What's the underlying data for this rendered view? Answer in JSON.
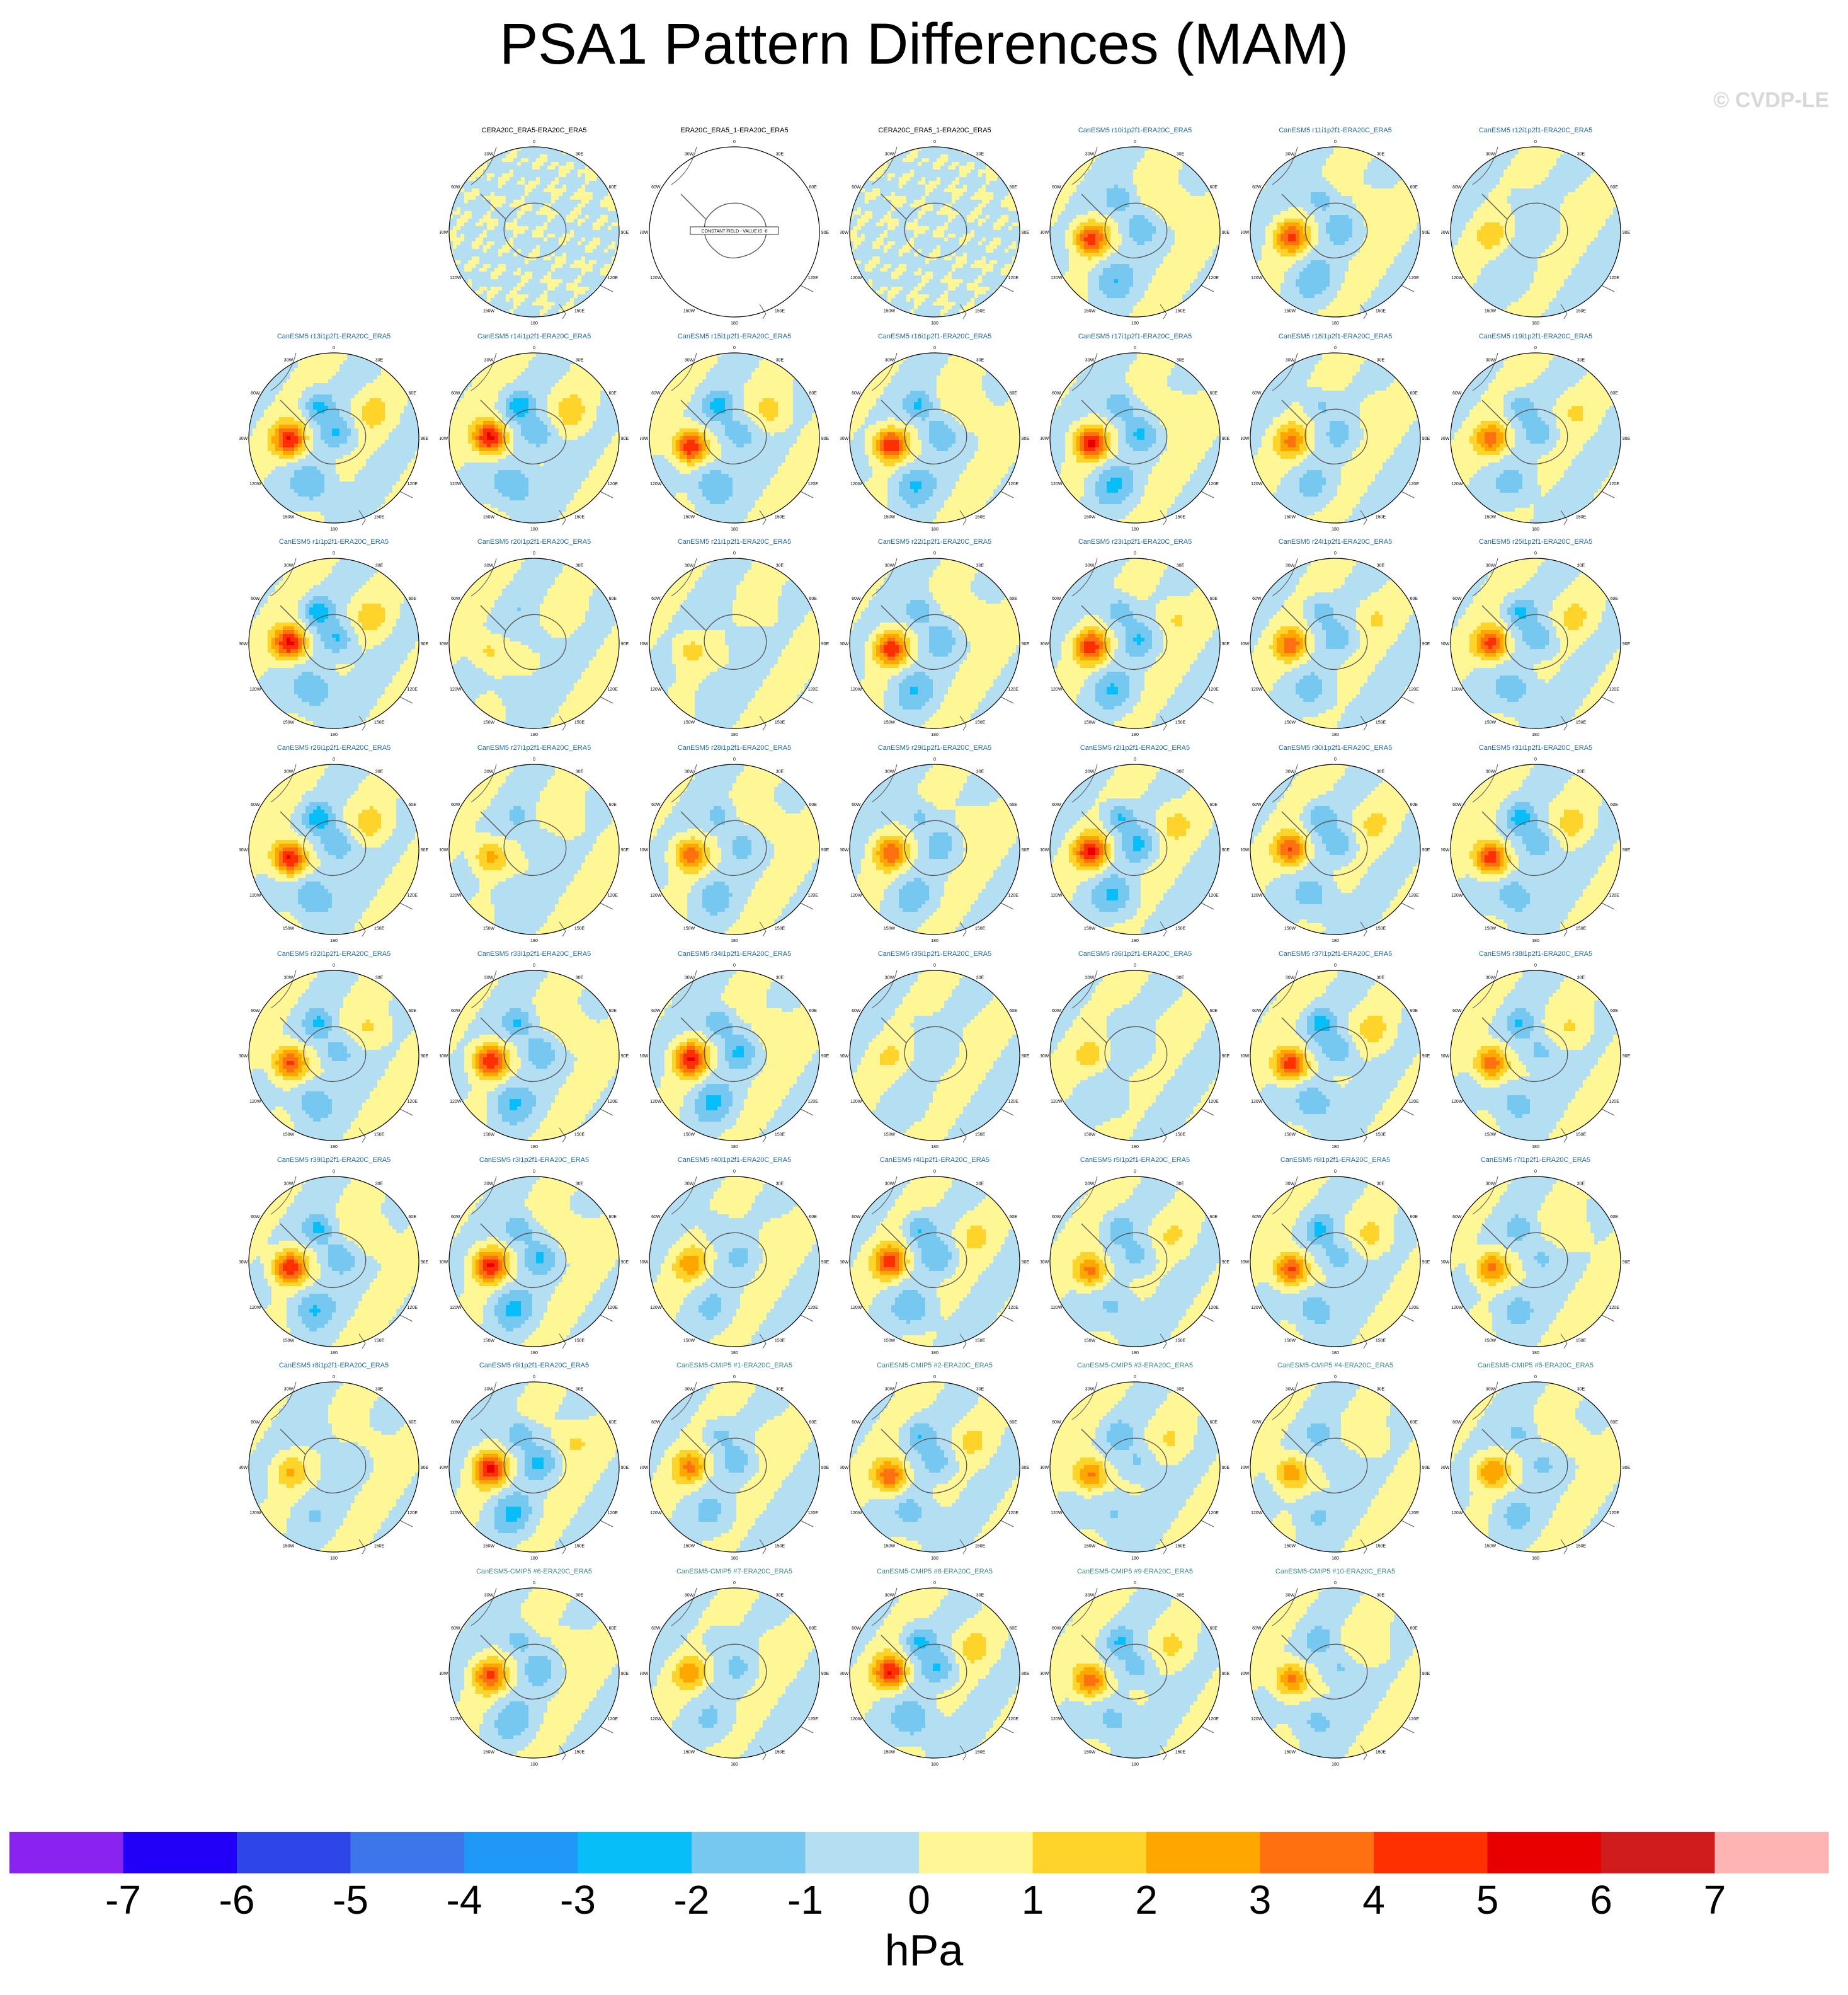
{
  "title": "PSA1 Pattern Differences (MAM)",
  "watermark": "© CVDP-LE",
  "map_tick_labels": [
    "0",
    "30E",
    "60E",
    "90E",
    "120E",
    "150E",
    "180",
    "150W",
    "120W",
    "90W",
    "60W",
    "30W"
  ],
  "constant_field_label": "CONSTANT FIELD - VALUE IS -0",
  "colors": {
    "obs_title": "#000000",
    "lens_title": "#1b6aa0",
    "cmip_title": "#3a8a8a",
    "land": "#555555"
  },
  "chart_data": {
    "type": "heatmap",
    "description_units": "hPa",
    "colorbar": {
      "label": "hPa",
      "ticks": [
        "-7",
        "-6",
        "-5",
        "-4",
        "-3",
        "-2",
        "-1",
        "0",
        "1",
        "2",
        "3",
        "4",
        "5",
        "6",
        "7"
      ],
      "colors": [
        "#8a22f0",
        "#2200f8",
        "#2e46e8",
        "#3c76ea",
        "#2098f8",
        "#08bef8",
        "#76c8f0",
        "#b4def2",
        "#fff696",
        "#ffd42a",
        "#ffa600",
        "#ff7010",
        "#ff3000",
        "#e80000",
        "#d01c1c",
        "#ffb4b4"
      ]
    },
    "panels": [
      {
        "title": "CERA20C_ERA5-ERA20C_ERA5",
        "kind": "obs",
        "pattern": "noisy",
        "amp": 0
      },
      {
        "title": "ERA20C_ERA5_1-ERA20C_ERA5",
        "kind": "obs",
        "pattern": "constant",
        "amp": 0
      },
      {
        "title": "CERA20C_ERA5_1-ERA20C_ERA5",
        "kind": "obs",
        "pattern": "noisy",
        "amp": 0
      },
      {
        "title": "CanESM5 r10i1p2f1-ERA20C_ERA5",
        "kind": "lens",
        "pattern": "psa",
        "amp": 4.5
      },
      {
        "title": "CanESM5 r11i1p2f1-ERA20C_ERA5",
        "kind": "lens",
        "pattern": "psa",
        "amp": 4.0
      },
      {
        "title": "CanESM5 r12i1p2f1-ERA20C_ERA5",
        "kind": "lens",
        "pattern": "psa",
        "amp": 1.5
      },
      {
        "title": "CanESM5 r13i1p2f1-ERA20C_ERA5",
        "kind": "lens",
        "pattern": "psa",
        "amp": 5.0
      },
      {
        "title": "CanESM5 r14i1p2f1-ERA20C_ERA5",
        "kind": "lens",
        "pattern": "psa",
        "amp": 5.5
      },
      {
        "title": "CanESM5 r15i1p2f1-ERA20C_ERA5",
        "kind": "lens",
        "pattern": "psa",
        "amp": 5.2
      },
      {
        "title": "CanESM5 r16i1p2f1-ERA20C_ERA5",
        "kind": "lens",
        "pattern": "psa",
        "amp": 5.0
      },
      {
        "title": "CanESM5 r17i1p2f1-ERA20C_ERA5",
        "kind": "lens",
        "pattern": "psa",
        "amp": 5.0
      },
      {
        "title": "CanESM5 r18i1p2f1-ERA20C_ERA5",
        "kind": "lens",
        "pattern": "psa",
        "amp": 3.0
      },
      {
        "title": "CanESM5 r19i1p2f1-ERA20C_ERA5",
        "kind": "lens",
        "pattern": "psa",
        "amp": 3.5
      },
      {
        "title": "CanESM5 r1i1p2f1-ERA20C_ERA5",
        "kind": "lens",
        "pattern": "psa",
        "amp": 5.5
      },
      {
        "title": "CanESM5 r20i1p2f1-ERA20C_ERA5",
        "kind": "lens",
        "pattern": "psa",
        "amp": 1.5
      },
      {
        "title": "CanESM5 r21i1p2f1-ERA20C_ERA5",
        "kind": "lens",
        "pattern": "psa",
        "amp": 1.5
      },
      {
        "title": "CanESM5 r22i1p2f1-ERA20C_ERA5",
        "kind": "lens",
        "pattern": "psa",
        "amp": 4.5
      },
      {
        "title": "CanESM5 r23i1p2f1-ERA20C_ERA5",
        "kind": "lens",
        "pattern": "psa",
        "amp": 4.5
      },
      {
        "title": "CanESM5 r24i1p2f1-ERA20C_ERA5",
        "kind": "lens",
        "pattern": "psa",
        "amp": 3.5
      },
      {
        "title": "CanESM5 r25i1p2f1-ERA20C_ERA5",
        "kind": "lens",
        "pattern": "psa",
        "amp": 4.5
      },
      {
        "title": "CanESM5 r26i1p2f1-ERA20C_ERA5",
        "kind": "lens",
        "pattern": "psa",
        "amp": 5.5
      },
      {
        "title": "CanESM5 r27i1p2f1-ERA20C_ERA5",
        "kind": "lens",
        "pattern": "psa",
        "amp": 2.5
      },
      {
        "title": "CanESM5 r28i1p2f1-ERA20C_ERA5",
        "kind": "lens",
        "pattern": "psa",
        "amp": 3.5
      },
      {
        "title": "CanESM5 r29i1p2f1-ERA20C_ERA5",
        "kind": "lens",
        "pattern": "psa",
        "amp": 3.5
      },
      {
        "title": "CanESM5 r2i1p2f1-ERA20C_ERA5",
        "kind": "lens",
        "pattern": "psa",
        "amp": 5.0
      },
      {
        "title": "CanESM5 r30i1p2f1-ERA20C_ERA5",
        "kind": "lens",
        "pattern": "psa",
        "amp": 4.0
      },
      {
        "title": "CanESM5 r31i1p2f1-ERA20C_ERA5",
        "kind": "lens",
        "pattern": "psa",
        "amp": 5.0
      },
      {
        "title": "CanESM5 r32i1p2f1-ERA20C_ERA5",
        "kind": "lens",
        "pattern": "psa",
        "amp": 4.5
      },
      {
        "title": "CanESM5 r33i1p2f1-ERA20C_ERA5",
        "kind": "lens",
        "pattern": "psa",
        "amp": 5.0
      },
      {
        "title": "CanESM5 r34i1p2f1-ERA20C_ERA5",
        "kind": "lens",
        "pattern": "psa",
        "amp": 5.0
      },
      {
        "title": "CanESM5 r35i1p2f1-ERA20C_ERA5",
        "kind": "lens",
        "pattern": "psa",
        "amp": 1.0
      },
      {
        "title": "CanESM5 r36i1p2f1-ERA20C_ERA5",
        "kind": "lens",
        "pattern": "psa",
        "amp": 1.5
      },
      {
        "title": "CanESM5 r37i1p2f1-ERA20C_ERA5",
        "kind": "lens",
        "pattern": "psa",
        "amp": 5.0
      },
      {
        "title": "CanESM5 r38i1p2f1-ERA20C_ERA5",
        "kind": "lens",
        "pattern": "psa",
        "amp": 4.0
      },
      {
        "title": "CanESM5 r39i1p2f1-ERA20C_ERA5",
        "kind": "lens",
        "pattern": "psa",
        "amp": 5.0
      },
      {
        "title": "CanESM5 r3i1p2f1-ERA20C_ERA5",
        "kind": "lens",
        "pattern": "psa",
        "amp": 5.0
      },
      {
        "title": "CanESM5 r40i1p2f1-ERA20C_ERA5",
        "kind": "lens",
        "pattern": "psa",
        "amp": 2.5
      },
      {
        "title": "CanESM5 r4i1p2f1-ERA20C_ERA5",
        "kind": "lens",
        "pattern": "psa",
        "amp": 4.5
      },
      {
        "title": "CanESM5 r5i1p2f1-ERA20C_ERA5",
        "kind": "lens",
        "pattern": "psa",
        "amp": 3.5
      },
      {
        "title": "CanESM5 r6i1p2f1-ERA20C_ERA5",
        "kind": "lens",
        "pattern": "psa",
        "amp": 4.5
      },
      {
        "title": "CanESM5 r7i1p2f1-ERA20C_ERA5",
        "kind": "lens",
        "pattern": "psa",
        "amp": 3.5
      },
      {
        "title": "CanESM5 r8i1p2f1-ERA20C_ERA5",
        "kind": "lens",
        "pattern": "psa",
        "amp": 2.0
      },
      {
        "title": "CanESM5 r9i1p2f1-ERA20C_ERA5",
        "kind": "lens",
        "pattern": "psa",
        "amp": 5.0
      },
      {
        "title": "CanESM5-CMIP5 #1-ERA20C_ERA5",
        "kind": "cmip",
        "pattern": "psa",
        "amp": 3.0
      },
      {
        "title": "CanESM5-CMIP5 #2-ERA20C_ERA5",
        "kind": "cmip",
        "pattern": "psa",
        "amp": 4.0
      },
      {
        "title": "CanESM5-CMIP5 #3-ERA20C_ERA5",
        "kind": "cmip",
        "pattern": "psa",
        "amp": 3.5
      },
      {
        "title": "CanESM5-CMIP5 #4-ERA20C_ERA5",
        "kind": "cmip",
        "pattern": "psa",
        "amp": 3.0
      },
      {
        "title": "CanESM5-CMIP5 #5-ERA20C_ERA5",
        "kind": "cmip",
        "pattern": "psa",
        "amp": 3.0
      },
      {
        "title": "CanESM5-CMIP5 #6-ERA20C_ERA5",
        "kind": "cmip",
        "pattern": "psa",
        "amp": 4.0
      },
      {
        "title": "CanESM5-CMIP5 #7-ERA20C_ERA5",
        "kind": "cmip",
        "pattern": "psa",
        "amp": 2.5
      },
      {
        "title": "CanESM5-CMIP5 #8-ERA20C_ERA5",
        "kind": "cmip",
        "pattern": "psa",
        "amp": 5.0
      },
      {
        "title": "CanESM5-CMIP5 #9-ERA20C_ERA5",
        "kind": "cmip",
        "pattern": "psa",
        "amp": 4.0
      },
      {
        "title": "CanESM5-CMIP5 #10-ERA20C_ERA5",
        "kind": "cmip",
        "pattern": "psa",
        "amp": 3.5
      }
    ]
  }
}
